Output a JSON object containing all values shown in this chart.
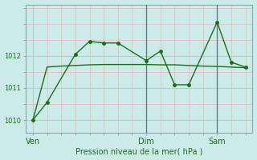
{
  "background_color": "#cceae8",
  "grid_major_color": "#aad4d0",
  "grid_minor_color": "#e8b8b8",
  "line_color": "#1a6e1a",
  "spine_color": "#88aaaa",
  "tick_label_color": "#1a6e1a",
  "xlabel_color": "#1a6e1a",
  "title": "Pression niveau de la mer( hPa )",
  "x_ticks_labels": [
    "Ven",
    "Dim",
    "Sam"
  ],
  "x_ticks_pos": [
    0,
    8,
    13
  ],
  "ylim": [
    1009.6,
    1013.6
  ],
  "yticks": [
    1010,
    1011,
    1012
  ],
  "line1_x": [
    0,
    1,
    3,
    4,
    5,
    6,
    8,
    9,
    10,
    11,
    13,
    14,
    15
  ],
  "line1_y": [
    1010.0,
    1010.55,
    1012.05,
    1012.45,
    1012.4,
    1012.4,
    1011.85,
    1012.15,
    1011.1,
    1011.1,
    1013.05,
    1011.8,
    1011.65
  ],
  "line2_x": [
    0,
    1,
    2,
    3,
    4,
    5,
    6,
    7,
    8,
    9,
    10,
    11,
    12,
    13,
    14,
    15
  ],
  "line2_y": [
    1010.0,
    1011.65,
    1011.68,
    1011.7,
    1011.72,
    1011.73,
    1011.73,
    1011.73,
    1011.73,
    1011.72,
    1011.72,
    1011.7,
    1011.68,
    1011.67,
    1011.65,
    1011.63
  ],
  "vline_color": "#557777",
  "vline_x": [
    8,
    13
  ],
  "marker_size": 2.5,
  "line_width": 1.0
}
